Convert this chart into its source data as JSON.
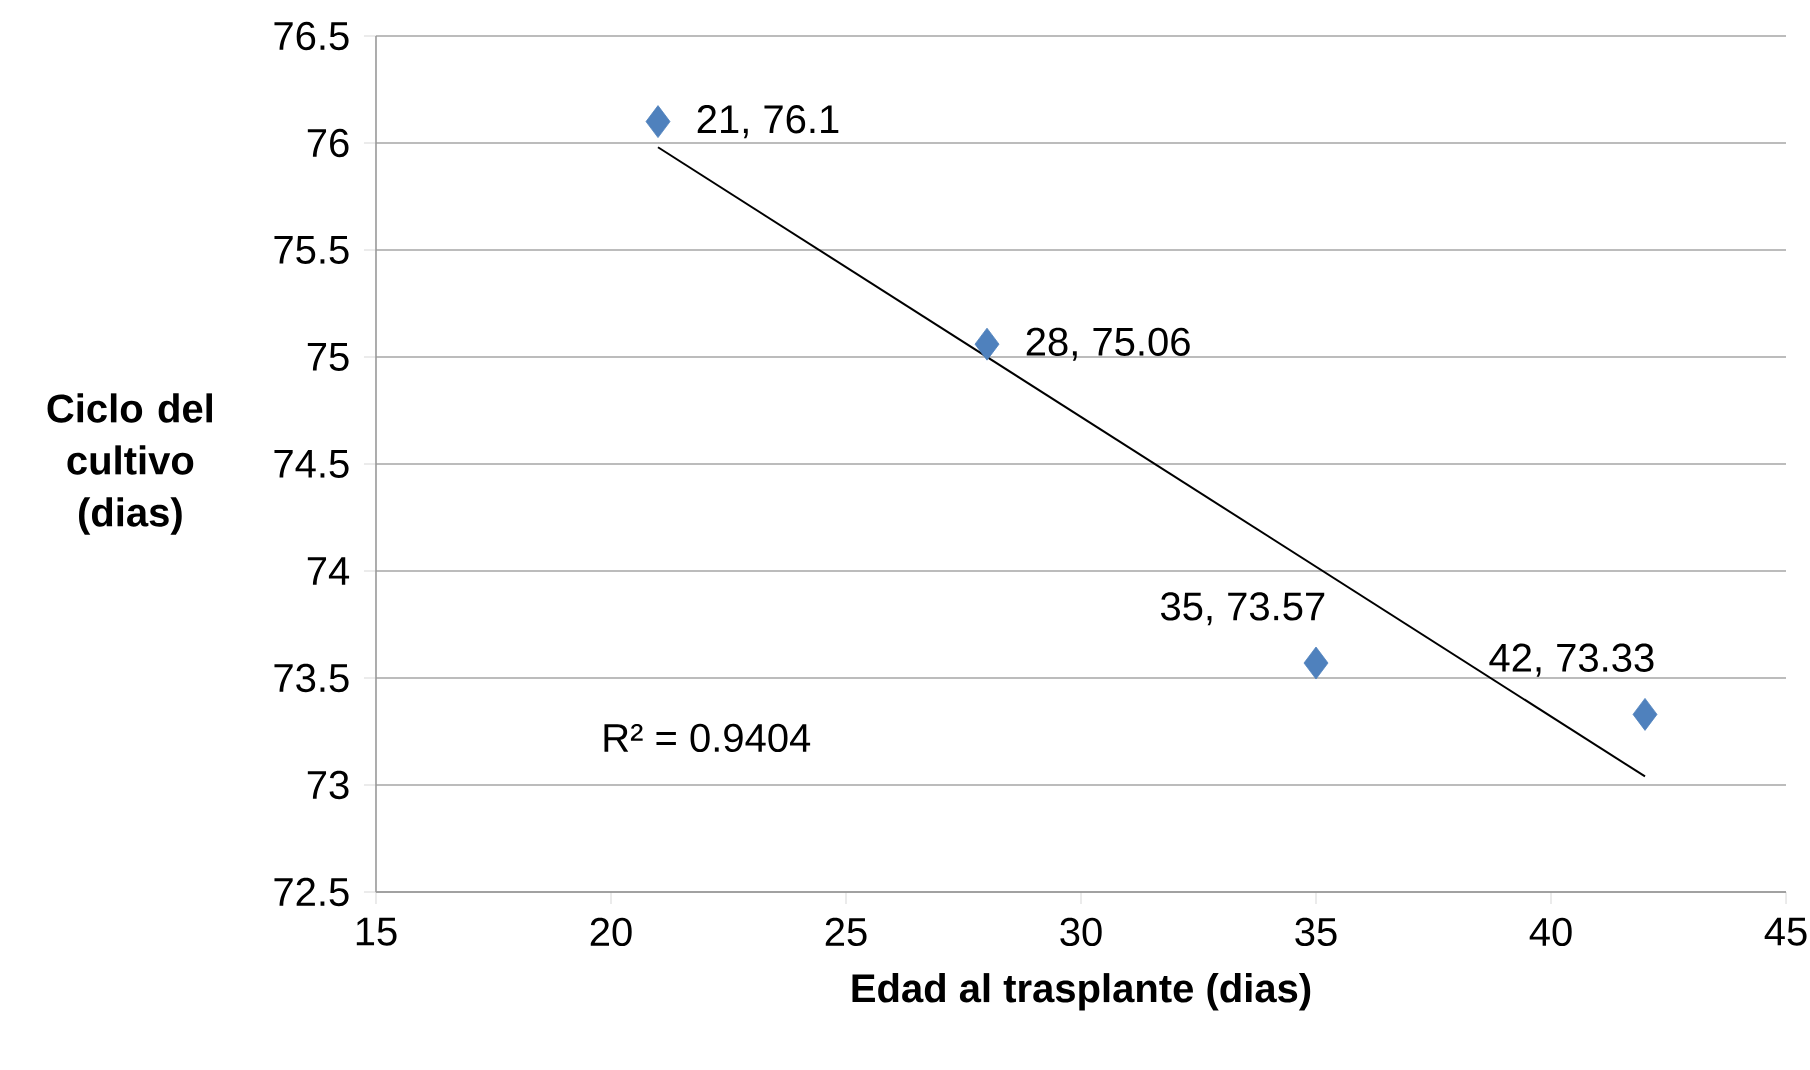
{
  "chart_data": {
    "type": "scatter",
    "xlabel": "Edad al trasplante (dias)",
    "ylabel": "Ciclo del cultivo (dias)",
    "xlim": [
      15,
      45
    ],
    "xticks": [
      15,
      20,
      25,
      30,
      35,
      40,
      45
    ],
    "ylim": [
      72.5,
      76.5
    ],
    "yticks": [
      72.5,
      73,
      73.5,
      74,
      74.5,
      75,
      75.5,
      76,
      76.5
    ],
    "grid": "y",
    "legend": false,
    "marker": "diamond",
    "series": [
      {
        "color": "#4f81bd",
        "x": [
          21,
          28,
          35,
          42
        ],
        "values": [
          76.1,
          75.06,
          73.57,
          73.33
        ],
        "value_labels": [
          "21, 76.1",
          "28, 75.06",
          "35, 73.57",
          "42, 73.33"
        ]
      },
      {
        "type": "line",
        "color": "#000000",
        "marker": "none",
        "x": [
          21,
          42
        ],
        "values": [
          75.98,
          73.04
        ]
      }
    ],
    "annotations": [
      "R² = 0.9404"
    ]
  }
}
